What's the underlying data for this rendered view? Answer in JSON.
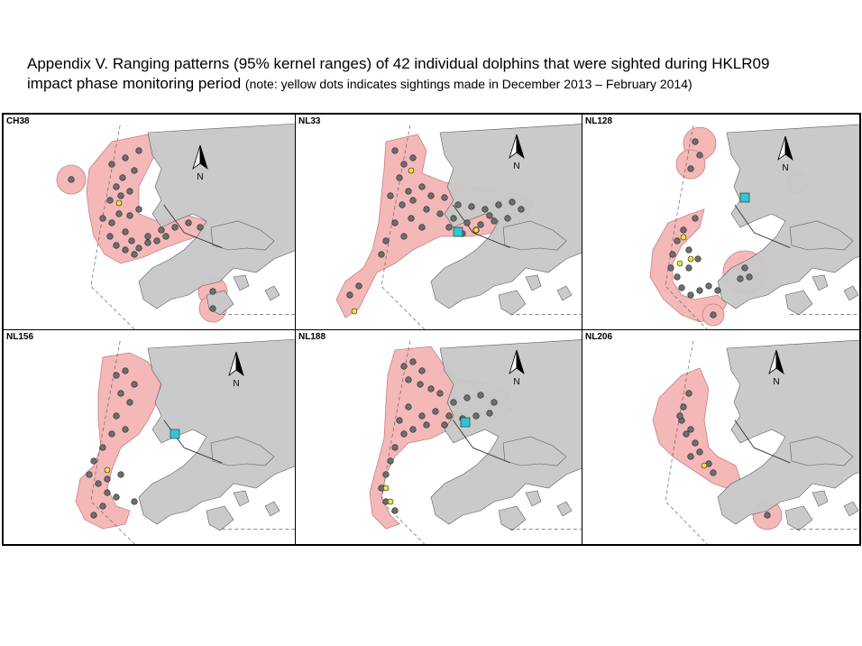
{
  "title": {
    "line1": "Appendix V.  Ranging patterns (95% kernel ranges) of 42 individual dolphins that were sighted during HKLR09",
    "line2_main": "impact phase monitoring period ",
    "line2_note": "(note: yellow dots indicates sightings made in December 2013 – February 2014)"
  },
  "panels": [
    {
      "id": "CH38",
      "north_label": "N"
    },
    {
      "id": "NL33",
      "north_label": "N"
    },
    {
      "id": "NL128",
      "north_label": "N"
    },
    {
      "id": "NL156",
      "north_label": "N"
    },
    {
      "id": "NL188",
      "north_label": "N"
    },
    {
      "id": "NL206",
      "north_label": "N"
    }
  ],
  "colors": {
    "kernel_range": "#f4b8b8",
    "kernel_outline": "#c98080",
    "land": "#c8c8c8",
    "sighting_dot": "#6e6e6e",
    "recent_sighting_dot": "#f2e23a",
    "marker": "#2ec7d6"
  }
}
